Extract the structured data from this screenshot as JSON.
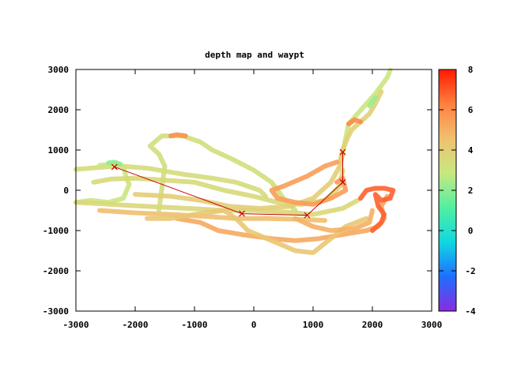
{
  "chart_data": {
    "type": "scatter",
    "title": "depth map  and waypt",
    "xlabel": "",
    "ylabel": "",
    "xlim": [
      -3000,
      3000
    ],
    "ylim": [
      -3000,
      3000
    ],
    "xticks": [
      "-3000",
      "-2000",
      "-1000",
      "0",
      "1000",
      "2000",
      "3000"
    ],
    "yticks": [
      "3000",
      "2000",
      "1000",
      "0",
      "-1000",
      "-2000",
      "-3000"
    ],
    "colorbar": {
      "range": [
        -4,
        8
      ],
      "ticks": [
        "8",
        "6",
        "4",
        "2",
        "0",
        "-2",
        "-4"
      ],
      "palette": [
        "#8a2be2",
        "#1e6fff",
        "#10d8e0",
        "#50f0a0",
        "#c8e880",
        "#f0c070",
        "#ff8040",
        "#ff1a00"
      ]
    },
    "grid": false,
    "waypoints": {
      "color": "#cc0000",
      "points": [
        [
          -2350,
          580
        ],
        [
          -200,
          -580
        ],
        [
          900,
          -620
        ],
        [
          1500,
          200
        ],
        [
          1500,
          950
        ]
      ]
    },
    "tracks": [
      {
        "depth": 3.4,
        "points": [
          [
            -3000,
            520
          ],
          [
            -2500,
            580
          ],
          [
            -2250,
            600
          ],
          [
            -1800,
            550
          ],
          [
            -1200,
            400
          ],
          [
            -700,
            300
          ],
          [
            -300,
            200
          ],
          [
            100,
            0
          ],
          [
            200,
            -150
          ]
        ]
      },
      {
        "depth": 3.0,
        "points": [
          [
            -2600,
            620
          ],
          [
            -2350,
            650
          ],
          [
            -2200,
            600
          ],
          [
            -2150,
            300
          ],
          [
            -2100,
            150
          ],
          [
            -2200,
            -200
          ],
          [
            -2450,
            -300
          ],
          [
            -2750,
            -250
          ],
          [
            -3000,
            -300
          ]
        ]
      },
      {
        "depth": 3.6,
        "points": [
          [
            -3000,
            -300
          ],
          [
            -2400,
            -350
          ],
          [
            -1800,
            -400
          ],
          [
            -1100,
            -450
          ],
          [
            -500,
            -500
          ],
          [
            0,
            -500
          ],
          [
            600,
            -550
          ],
          [
            1000,
            -600
          ],
          [
            1500,
            -450
          ],
          [
            1750,
            -250
          ]
        ]
      },
      {
        "depth": 4.6,
        "points": [
          [
            -2600,
            -500
          ],
          [
            -2000,
            -560
          ],
          [
            -1400,
            -600
          ],
          [
            -800,
            -650
          ],
          [
            -300,
            -700
          ],
          [
            200,
            -700
          ],
          [
            800,
            -720
          ],
          [
            1200,
            -750
          ]
        ]
      },
      {
        "depth": 5.2,
        "points": [
          [
            -1300,
            -700
          ],
          [
            -900,
            -800
          ],
          [
            -600,
            -1000
          ],
          [
            -200,
            -1100
          ],
          [
            300,
            -1200
          ],
          [
            700,
            -1250
          ],
          [
            1100,
            -1200
          ],
          [
            1500,
            -1100
          ],
          [
            1900,
            -1000
          ],
          [
            2100,
            -900
          ],
          [
            2200,
            -700
          ],
          [
            2150,
            -400
          ],
          [
            2250,
            -150
          ]
        ]
      },
      {
        "depth": 4.3,
        "points": [
          [
            -1800,
            -700
          ],
          [
            -1400,
            -700
          ],
          [
            -1000,
            -600
          ],
          [
            -500,
            -500
          ],
          [
            -300,
            -700
          ],
          [
            -100,
            -1000
          ],
          [
            300,
            -1250
          ],
          [
            700,
            -1500
          ],
          [
            1000,
            -1550
          ],
          [
            1300,
            -1200
          ],
          [
            1550,
            -900
          ],
          [
            1900,
            -700
          ]
        ]
      },
      {
        "depth": 3.3,
        "points": [
          [
            -1600,
            -500
          ],
          [
            -1500,
            600
          ],
          [
            -1600,
            900
          ],
          [
            -1750,
            1100
          ],
          [
            -1550,
            1350
          ],
          [
            -1200,
            1350
          ],
          [
            -900,
            1200
          ],
          [
            -700,
            1000
          ],
          [
            -400,
            800
          ],
          [
            0,
            500
          ],
          [
            300,
            200
          ],
          [
            500,
            -200
          ],
          [
            700,
            -500
          ]
        ]
      },
      {
        "depth": 5.8,
        "points": [
          [
            -1400,
            1350
          ],
          [
            -1300,
            1380
          ],
          [
            -1150,
            1350
          ]
        ]
      },
      {
        "depth": 3.5,
        "points": [
          [
            -2700,
            200
          ],
          [
            -2400,
            280
          ],
          [
            -2000,
            300
          ],
          [
            -1500,
            250
          ],
          [
            -1000,
            200
          ],
          [
            -500,
            0
          ],
          [
            0,
            -150
          ],
          [
            400,
            -300
          ],
          [
            800,
            -350
          ],
          [
            1200,
            -250
          ],
          [
            1450,
            100
          ],
          [
            1500,
            500
          ]
        ]
      },
      {
        "depth": 4.0,
        "points": [
          [
            -2000,
            -100
          ],
          [
            -1400,
            -150
          ],
          [
            -900,
            -250
          ],
          [
            -400,
            -400
          ],
          [
            100,
            -450
          ],
          [
            600,
            -400
          ],
          [
            1000,
            -200
          ],
          [
            1300,
            200
          ],
          [
            1450,
            600
          ],
          [
            1500,
            900
          ]
        ]
      },
      {
        "depth": 3.0,
        "points": [
          [
            1500,
            950
          ],
          [
            1550,
            1300
          ],
          [
            1600,
            1650
          ],
          [
            1750,
            1900
          ],
          [
            1900,
            2150
          ],
          [
            2050,
            2400
          ],
          [
            2150,
            2600
          ],
          [
            2250,
            2800
          ],
          [
            2300,
            2980
          ]
        ]
      },
      {
        "depth": 3.9,
        "points": [
          [
            1450,
            700
          ],
          [
            1500,
            1000
          ],
          [
            1580,
            1300
          ],
          [
            1650,
            1500
          ],
          [
            1800,
            1700
          ],
          [
            1950,
            1900
          ],
          [
            2050,
            2150
          ],
          [
            2150,
            2450
          ]
        ]
      },
      {
        "depth": 6.0,
        "points": [
          [
            1600,
            1650
          ],
          [
            1700,
            1750
          ],
          [
            1800,
            1700
          ]
        ]
      },
      {
        "depth": 5.5,
        "points": [
          [
            1400,
            200
          ],
          [
            1500,
            300
          ],
          [
            1550,
            0
          ],
          [
            1300,
            -200
          ],
          [
            1000,
            -350
          ],
          [
            700,
            -300
          ],
          [
            400,
            -200
          ],
          [
            300,
            0
          ],
          [
            500,
            100
          ],
          [
            900,
            350
          ],
          [
            1200,
            600
          ],
          [
            1400,
            700
          ]
        ]
      },
      {
        "depth": 5.0,
        "points": [
          [
            700,
            -700
          ],
          [
            1000,
            -900
          ],
          [
            1300,
            -1000
          ],
          [
            1700,
            -950
          ],
          [
            1950,
            -800
          ],
          [
            2000,
            -500
          ]
        ]
      },
      {
        "depth": 6.8,
        "points": [
          [
            1800,
            -200
          ],
          [
            1900,
            0
          ],
          [
            2050,
            50
          ],
          [
            2200,
            50
          ],
          [
            2350,
            0
          ],
          [
            2300,
            -200
          ],
          [
            2150,
            -250
          ],
          [
            2050,
            -100
          ],
          [
            2100,
            -400
          ],
          [
            2200,
            -600
          ],
          [
            2150,
            -800
          ],
          [
            2000,
            -1000
          ]
        ]
      },
      {
        "depth": 2.2,
        "points": [
          [
            1950,
            2100
          ],
          [
            2000,
            2200
          ],
          [
            2050,
            2300
          ]
        ]
      },
      {
        "depth": 2.0,
        "points": [
          [
            -2450,
            680
          ],
          [
            -2350,
            700
          ],
          [
            -2250,
            650
          ]
        ]
      }
    ]
  }
}
